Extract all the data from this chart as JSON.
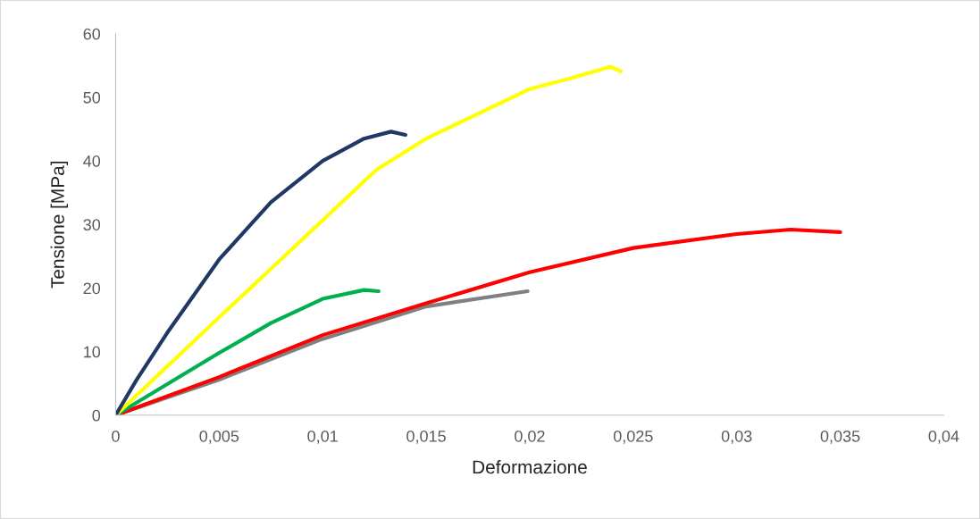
{
  "chart_data": {
    "type": "line",
    "xlabel": "Deformazione",
    "ylabel": "Tensione [MPa]",
    "xlim": [
      0,
      0.04
    ],
    "ylim": [
      0,
      60
    ],
    "xticks": [
      0,
      {
        "value": 0.005,
        "label": "0,005"
      },
      {
        "value": 0.01,
        "label": "0,01"
      },
      {
        "value": 0.015,
        "label": "0,015"
      },
      {
        "value": 0.02,
        "label": "0,02"
      },
      {
        "value": 0.025,
        "label": "0,025"
      },
      {
        "value": 0.03,
        "label": "0,03"
      },
      {
        "value": 0.035,
        "label": "0,035"
      },
      {
        "value": 0.04,
        "label": "0,04"
      }
    ],
    "yticks": [
      0,
      10,
      20,
      30,
      40,
      50,
      60
    ],
    "grid": false,
    "legend": false,
    "marker": "none",
    "line_style": "solid",
    "series": [
      {
        "color": "#808080",
        "x": [
          0,
          0.005,
          0.01,
          0.015,
          0.0199
        ],
        "values": [
          0,
          5.6,
          12.0,
          17.1,
          19.5
        ]
      },
      {
        "color": "#ff0000",
        "x": [
          0,
          0.005,
          0.01,
          0.015,
          0.02,
          0.025,
          0.03,
          0.0326,
          0.035
        ],
        "values": [
          0,
          6.0,
          12.6,
          17.6,
          22.5,
          26.3,
          28.5,
          29.2,
          28.8
        ]
      },
      {
        "color": "#00b050",
        "x": [
          0,
          0.005,
          0.0075,
          0.01,
          0.012,
          0.0127
        ],
        "values": [
          0,
          9.8,
          14.5,
          18.3,
          19.7,
          19.5
        ]
      },
      {
        "color": "#ffff00",
        "x": [
          0,
          0.005,
          0.0126,
          0.015,
          0.02,
          0.022,
          0.0239,
          0.0244
        ],
        "values": [
          0,
          15.4,
          38.6,
          43.5,
          51.3,
          53.0,
          54.8,
          54.1
        ]
      },
      {
        "color": "#203864",
        "x": [
          0,
          0.001,
          0.0025,
          0.005,
          0.0075,
          0.01,
          0.012,
          0.0133,
          0.014
        ],
        "values": [
          0,
          5.5,
          13,
          24.5,
          33.5,
          40,
          43.5,
          44.6,
          44.1
        ]
      }
    ]
  }
}
